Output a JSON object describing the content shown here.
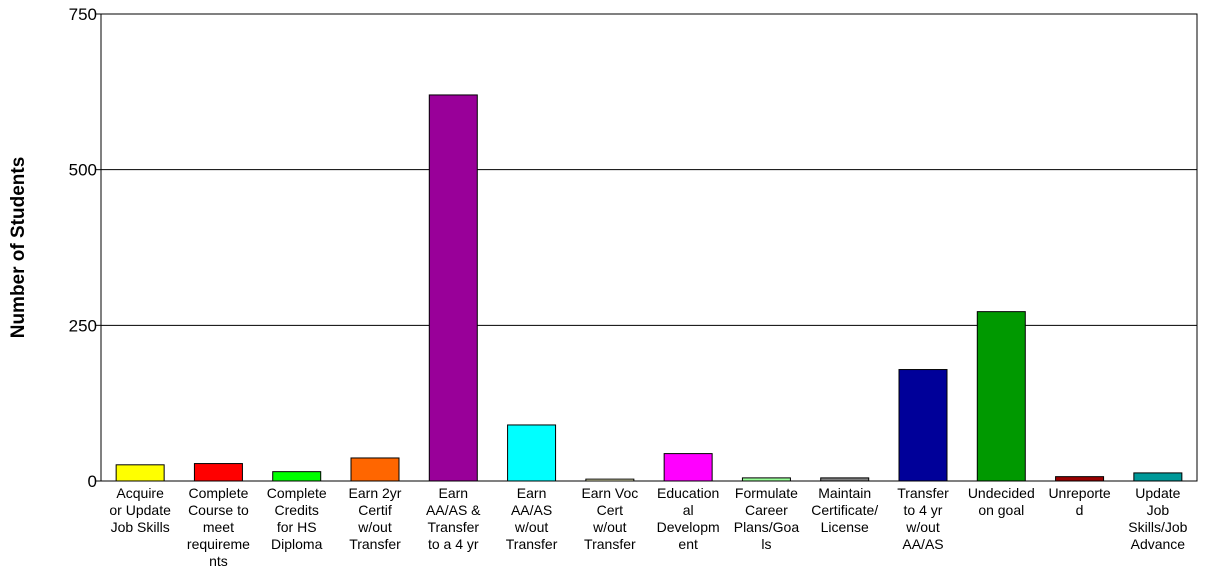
{
  "chart_data": {
    "type": "bar",
    "ylabel": "Number of Students",
    "xlabel": "",
    "title": "",
    "ylim": [
      0,
      750
    ],
    "yticks": [
      0,
      250,
      500,
      750
    ],
    "grid": "horizontal",
    "categories": [
      [
        "Acquire",
        "or Update",
        "Job Skills"
      ],
      [
        "Complete",
        "Course to",
        "meet",
        "requireme",
        "nts"
      ],
      [
        "Complete",
        "Credits",
        "for HS",
        "Diploma"
      ],
      [
        "Earn 2yr",
        "Certif",
        "w/out",
        "Transfer"
      ],
      [
        "Earn",
        "AA/AS &",
        "Transfer",
        "to a 4 yr"
      ],
      [
        "Earn",
        "AA/AS",
        "w/out",
        "Transfer"
      ],
      [
        "Earn Voc",
        "Cert",
        "w/out",
        "Transfer"
      ],
      [
        "Education",
        "al",
        "Developm",
        "ent"
      ],
      [
        "Formulate",
        "Career",
        "Plans/Goa",
        "ls"
      ],
      [
        "Maintain",
        "Certificate/",
        "License"
      ],
      [
        "Transfer",
        "to 4 yr",
        "w/out",
        "AA/AS"
      ],
      [
        "Undecided",
        "on goal"
      ],
      [
        "Unreporte",
        "d"
      ],
      [
        "Update",
        "Job",
        "Skills/Job",
        "Advance"
      ]
    ],
    "values": [
      26,
      28,
      15,
      37,
      620,
      90,
      3,
      44,
      5,
      5,
      179,
      272,
      7,
      13
    ],
    "colors": [
      "#ffff00",
      "#ff0000",
      "#00ff00",
      "#ff6600",
      "#990099",
      "#00ffff",
      "#ffffcc",
      "#ff00ff",
      "#99ff99",
      "#808080",
      "#000099",
      "#009900",
      "#990000",
      "#009999"
    ]
  }
}
